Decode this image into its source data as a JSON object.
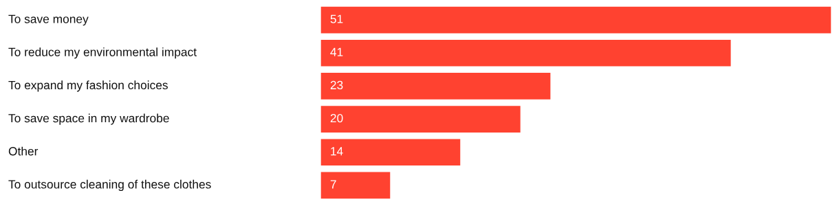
{
  "chart_data": {
    "type": "bar",
    "orientation": "horizontal",
    "categories": [
      "To save money",
      "To reduce my environmental impact",
      "To expand my fashion choices",
      "To save space in my wardrobe",
      "Other",
      "To outsource cleaning of these clothes"
    ],
    "values": [
      51,
      41,
      23,
      20,
      14,
      7
    ],
    "color": "#ff4230",
    "data_labels": true
  }
}
